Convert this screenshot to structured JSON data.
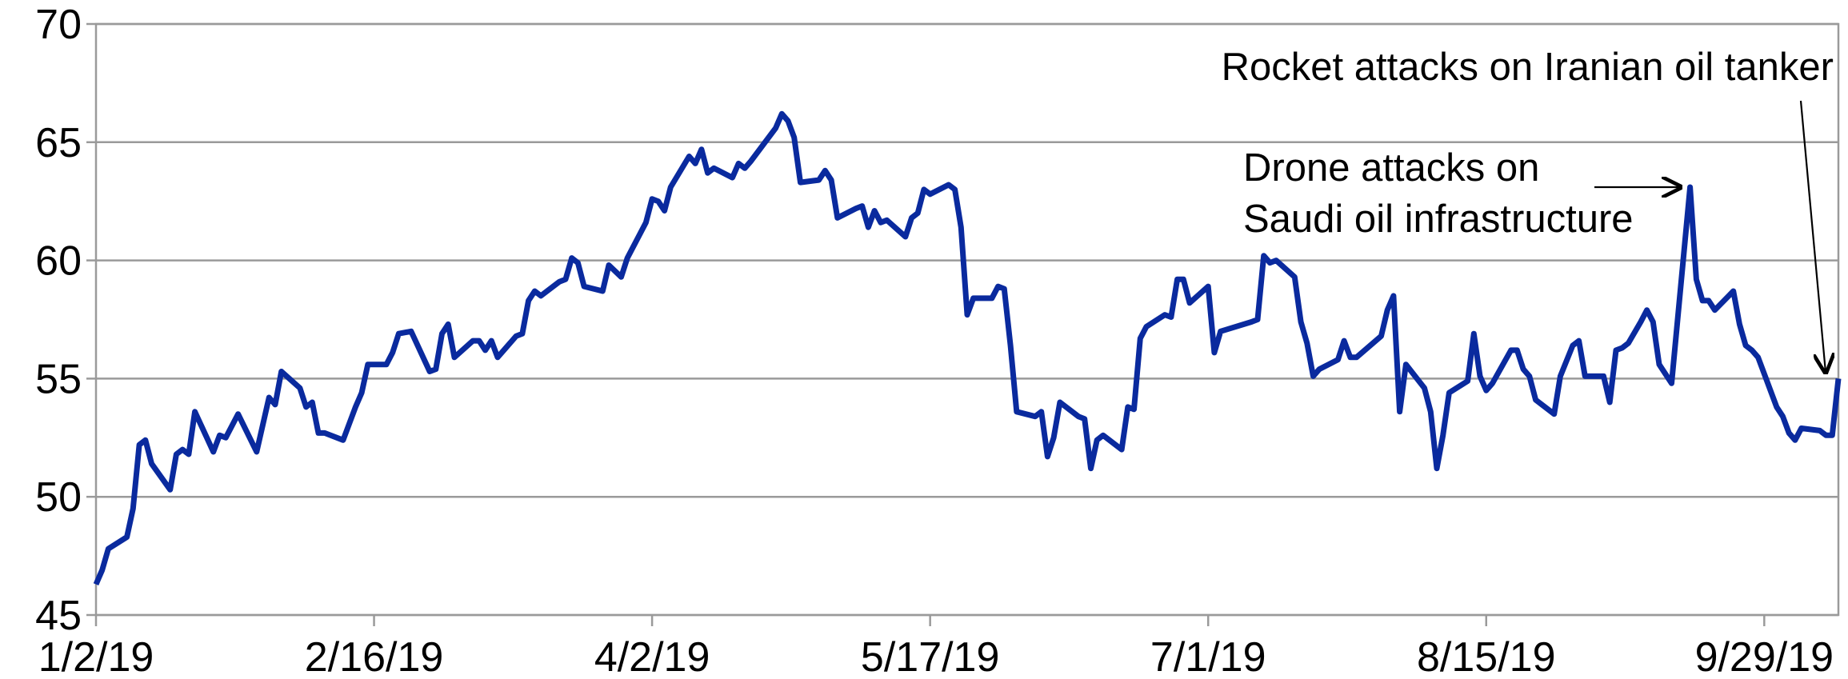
{
  "chart_data": {
    "type": "line",
    "x": [
      "1/2/19",
      "1/3/19",
      "1/4/19",
      "1/7/19",
      "1/8/19",
      "1/9/19",
      "1/10/19",
      "1/11/19",
      "1/14/19",
      "1/15/19",
      "1/16/19",
      "1/17/19",
      "1/18/19",
      "1/21/19",
      "1/22/19",
      "1/23/19",
      "1/25/19",
      "1/28/19",
      "1/30/19",
      "1/31/19",
      "2/1/19",
      "2/4/19",
      "2/5/19",
      "2/6/19",
      "2/7/19",
      "2/8/19",
      "2/11/19",
      "2/13/19",
      "2/14/19",
      "2/15/19",
      "2/18/19",
      "2/19/19",
      "2/20/19",
      "2/22/19",
      "2/25/19",
      "2/26/19",
      "2/27/19",
      "2/28/19",
      "3/1/19",
      "3/4/19",
      "3/5/19",
      "3/6/19",
      "3/7/19",
      "3/8/19",
      "3/11/19",
      "3/12/19",
      "3/13/19",
      "3/14/19",
      "3/15/19",
      "3/18/19",
      "3/19/19",
      "3/20/19",
      "3/21/19",
      "3/22/19",
      "3/25/19",
      "3/26/19",
      "3/28/19",
      "3/29/19",
      "4/1/19",
      "4/2/19",
      "4/3/19",
      "4/4/19",
      "4/5/19",
      "4/8/19",
      "4/9/19",
      "4/10/19",
      "4/11/19",
      "4/12/19",
      "4/15/19",
      "4/16/19",
      "4/17/19",
      "4/18/19",
      "4/22/19",
      "4/23/19",
      "4/24/19",
      "4/25/19",
      "4/26/19",
      "4/29/19",
      "4/30/19",
      "5/1/19",
      "5/2/19",
      "5/5/19",
      "5/6/19",
      "5/7/19",
      "5/8/19",
      "5/9/19",
      "5/10/19",
      "5/13/19",
      "5/14/19",
      "5/15/19",
      "5/16/19",
      "5/17/19",
      "5/20/19",
      "5/21/19",
      "5/22/19",
      "5/23/19",
      "5/24/19",
      "5/27/19",
      "5/28/19",
      "5/29/19",
      "5/30/19",
      "5/31/19",
      "6/3/19",
      "6/4/19",
      "6/5/19",
      "6/6/19",
      "6/7/19",
      "6/10/19",
      "6/11/19",
      "6/12/19",
      "6/13/19",
      "6/14/19",
      "6/17/19",
      "6/18/19",
      "6/19/19",
      "6/20/19",
      "6/21/19",
      "6/24/19",
      "6/25/19",
      "6/26/19",
      "6/27/19",
      "6/28/19",
      "7/1/19",
      "7/2/19",
      "7/3/19",
      "7/8/19",
      "7/9/19",
      "7/10/19",
      "7/11/19",
      "7/12/19",
      "7/15/19",
      "7/16/19",
      "7/17/19",
      "7/18/19",
      "7/19/19",
      "7/22/19",
      "7/23/19",
      "7/24/19",
      "7/25/19",
      "7/29/19",
      "7/30/19",
      "7/31/19",
      "8/1/19",
      "8/2/19",
      "8/5/19",
      "8/6/19",
      "8/7/19",
      "8/8/19",
      "8/9/19",
      "8/12/19",
      "8/13/19",
      "8/14/19",
      "8/15/19",
      "8/16/19",
      "8/19/19",
      "8/20/19",
      "8/21/19",
      "8/22/19",
      "8/23/19",
      "8/26/19",
      "8/27/19",
      "8/29/19",
      "8/30/19",
      "8/31/19",
      "9/2/19",
      "9/3/19",
      "9/4/19",
      "9/5/19",
      "9/6/19",
      "9/7/19",
      "9/9/19",
      "9/10/19",
      "9/11/19",
      "9/12/19",
      "9/14/19",
      "9/17/19",
      "9/18/19",
      "9/19/19",
      "9/20/19",
      "9/21/19",
      "9/24/19",
      "9/25/19",
      "9/26/19",
      "9/27/19",
      "9/28/19",
      "10/1/19",
      "10/2/19",
      "10/3/19",
      "10/4/19",
      "10/5/19",
      "10/8/19",
      "10/9/19",
      "10/10/19",
      "10/11/19"
    ],
    "series": [
      {
        "color": "#0a2a9e",
        "values": [
          46.3,
          46.9,
          47.8,
          48.3,
          49.5,
          52.2,
          52.4,
          51.4,
          50.3,
          51.8,
          52.0,
          51.8,
          53.6,
          51.9,
          52.6,
          52.5,
          53.5,
          51.9,
          54.2,
          53.9,
          55.3,
          54.6,
          53.8,
          54.0,
          52.7,
          52.7,
          52.4,
          53.8,
          54.4,
          55.6,
          55.6,
          56.1,
          56.9,
          57.0,
          55.3,
          55.4,
          56.9,
          57.3,
          55.9,
          56.6,
          56.6,
          56.2,
          56.6,
          55.9,
          56.8,
          56.9,
          58.3,
          58.7,
          58.5,
          59.1,
          59.2,
          60.1,
          59.9,
          58.9,
          58.7,
          59.8,
          59.3,
          60.1,
          61.6,
          62.6,
          62.5,
          62.1,
          63.1,
          64.4,
          64.1,
          64.7,
          63.7,
          63.9,
          63.5,
          64.1,
          63.9,
          64.2,
          65.6,
          66.2,
          65.9,
          65.2,
          63.3,
          63.4,
          63.8,
          63.4,
          61.8,
          62.2,
          62.3,
          61.4,
          62.1,
          61.6,
          61.7,
          61.0,
          61.8,
          62.0,
          63.0,
          62.8,
          63.2,
          63.0,
          61.4,
          57.7,
          58.4,
          58.4,
          58.9,
          58.8,
          56.4,
          53.6,
          53.4,
          53.6,
          51.7,
          52.5,
          54.0,
          53.4,
          53.3,
          51.2,
          52.4,
          52.6,
          52.0,
          53.8,
          53.7,
          56.7,
          57.2,
          57.7,
          57.6,
          59.2,
          59.2,
          58.2,
          58.9,
          56.1,
          57.0,
          57.4,
          57.5,
          60.2,
          59.9,
          60.0,
          59.3,
          57.4,
          56.5,
          55.1,
          55.4,
          55.8,
          56.6,
          55.9,
          55.9,
          56.8,
          57.9,
          58.5,
          53.6,
          55.6,
          54.6,
          53.6,
          51.2,
          52.6,
          54.4,
          54.9,
          56.9,
          55.1,
          54.5,
          54.8,
          56.2,
          56.2,
          55.4,
          55.1,
          54.1,
          53.5,
          55.1,
          56.4,
          56.6,
          55.1,
          55.1,
          55.1,
          54.0,
          56.2,
          56.3,
          56.5,
          57.4,
          57.9,
          57.4,
          55.6,
          54.8,
          63.1,
          59.2,
          58.3,
          58.3,
          57.9,
          58.7,
          57.3,
          56.4,
          56.2,
          55.9,
          53.8,
          53.4,
          52.7,
          52.4,
          52.9,
          52.8,
          52.6,
          52.6,
          55.0
        ]
      }
    ],
    "xlim": [
      "1/2/19",
      "10/11/19"
    ],
    "xticks": [
      "1/2/19",
      "2/16/19",
      "4/2/19",
      "5/17/19",
      "7/1/19",
      "8/15/19",
      "9/29/19"
    ],
    "ylim": [
      45,
      70
    ],
    "yticks": [
      45,
      50,
      55,
      60,
      65,
      70
    ],
    "grid": true,
    "annotations": [
      {
        "text": [
          "Rocket attacks on Iranian oil tanker"
        ],
        "x": "10/11/19",
        "y": 55.0
      },
      {
        "text": [
          "Drone attacks on",
          "Saudi oil infrastructure"
        ],
        "x": "9/17/19",
        "y": 63.1
      }
    ]
  }
}
